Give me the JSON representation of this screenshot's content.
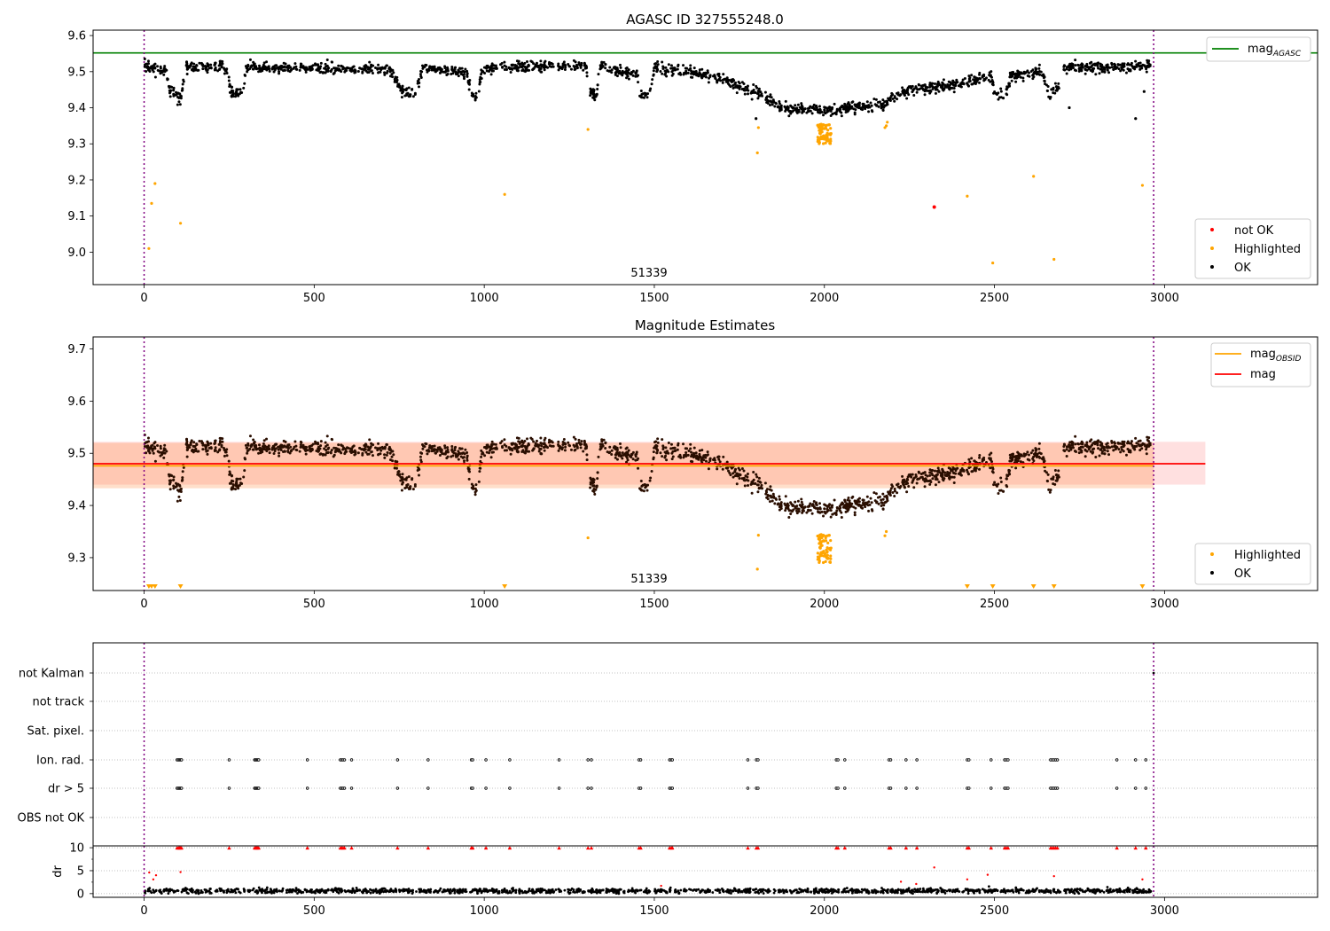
{
  "chart_data": [
    {
      "type": "scatter",
      "title": "AGASC ID 327555248.0",
      "xlim": [
        -150,
        3450
      ],
      "ylim": [
        8.91,
        9.615
      ],
      "x_ticks": [
        0,
        500,
        1000,
        1500,
        2000,
        2500,
        3000
      ],
      "y_ticks": [
        9.0,
        9.1,
        9.2,
        9.3,
        9.4,
        9.5,
        9.6
      ],
      "annotation": "51339",
      "vlines": [
        0,
        2968
      ],
      "hline": {
        "name": "mag",
        "name_sub": "AGASC",
        "value": 9.552,
        "color": "#008000",
        "x_range": [
          -150,
          3450
        ]
      },
      "legend_top": [
        {
          "label": "mag",
          "sub": "AGASC",
          "color": "#008000"
        }
      ],
      "legend_bottom": [
        {
          "label": "not OK",
          "color": "#ff0000"
        },
        {
          "label": "Highlighted",
          "color": "#ffa500"
        },
        {
          "label": "OK",
          "color": "#000000"
        }
      ],
      "trend": [
        [
          0,
          9.515
        ],
        [
          40,
          9.51
        ],
        [
          65,
          9.5
        ],
        [
          75,
          9.45
        ],
        [
          110,
          9.425
        ],
        [
          120,
          9.515
        ],
        [
          200,
          9.51
        ],
        [
          225,
          9.52
        ],
        [
          245,
          9.5
        ],
        [
          255,
          9.44
        ],
        [
          290,
          9.44
        ],
        [
          300,
          9.51
        ],
        [
          500,
          9.51
        ],
        [
          720,
          9.505
        ],
        [
          760,
          9.445
        ],
        [
          800,
          9.44
        ],
        [
          820,
          9.51
        ],
        [
          900,
          9.5
        ],
        [
          950,
          9.495
        ],
        [
          965,
          9.425
        ],
        [
          980,
          9.43
        ],
        [
          995,
          9.51
        ],
        [
          1300,
          9.515
        ],
        [
          1310,
          9.445
        ],
        [
          1330,
          9.435
        ],
        [
          1340,
          9.515
        ],
        [
          1450,
          9.49
        ],
        [
          1460,
          9.435
        ],
        [
          1490,
          9.45
        ],
        [
          1500,
          9.51
        ],
        [
          1600,
          9.5
        ],
        [
          1700,
          9.48
        ],
        [
          1800,
          9.44
        ],
        [
          1880,
          9.4
        ],
        [
          1990,
          9.395
        ],
        [
          2010,
          9.39
        ],
        [
          2100,
          9.405
        ],
        [
          2180,
          9.41
        ],
        [
          2220,
          9.44
        ],
        [
          2300,
          9.455
        ],
        [
          2400,
          9.465
        ],
        [
          2490,
          9.49
        ],
        [
          2500,
          9.435
        ],
        [
          2530,
          9.43
        ],
        [
          2550,
          9.49
        ],
        [
          2640,
          9.5
        ],
        [
          2660,
          9.44
        ],
        [
          2690,
          9.455
        ],
        [
          2700,
          9.51
        ],
        [
          2960,
          9.515
        ]
      ],
      "series": [
        {
          "name": "Highlighted",
          "color": "#ffa500",
          "points": [
            [
              14,
              9.01
            ],
            [
              22,
              9.135
            ],
            [
              32,
              9.19
            ],
            [
              107,
              9.08
            ],
            [
              1060,
              9.16
            ],
            [
              1305,
              9.34
            ],
            [
              1803,
              9.275
            ],
            [
              1806,
              9.345
            ],
            [
              2420,
              9.155
            ],
            [
              2495,
              8.97
            ],
            [
              2615,
              9.21
            ],
            [
              2675,
              8.98
            ],
            [
              2935,
              9.185
            ],
            [
              2178,
              9.345
            ],
            [
              2182,
              9.35
            ],
            [
              2185,
              9.36
            ]
          ]
        },
        {
          "name": "not OK",
          "color": "#ff0000",
          "points": [
            [
              2323,
              9.125
            ]
          ]
        },
        {
          "name": "OK",
          "color": "#000000",
          "points": [
            [
              2915,
              9.37
            ],
            [
              2940,
              9.445
            ],
            [
              2720,
              9.4
            ],
            [
              1799,
              9.37
            ]
          ]
        }
      ],
      "highlighted_cluster": {
        "x_range": [
          1980,
          2020
        ],
        "y_range": [
          9.3,
          9.355
        ],
        "color": "#ffa500"
      }
    },
    {
      "type": "scatter",
      "title": "Magnitude Estimates",
      "xlim": [
        -150,
        3450
      ],
      "ylim": [
        9.237,
        9.723
      ],
      "x_ticks": [
        0,
        500,
        1000,
        1500,
        2000,
        2500,
        3000
      ],
      "y_ticks": [
        9.3,
        9.4,
        9.5,
        9.6,
        9.7
      ],
      "annotation": "51339",
      "vlines": [
        0,
        2968
      ],
      "lines": [
        {
          "name": "mag",
          "name_sub": "OBSID",
          "value": 9.476,
          "color": "#ffa500",
          "x_range": [
            -150,
            2968
          ]
        },
        {
          "name": "mag",
          "value": 9.48,
          "color": "#ff0000",
          "x_range": [
            -150,
            3120
          ]
        }
      ],
      "bands": [
        {
          "y": [
            9.44,
            9.522
          ],
          "x_range": [
            -150,
            3120
          ],
          "color": "#ff0000",
          "opacity": 0.12
        },
        {
          "y": [
            9.433,
            9.52
          ],
          "x_range": [
            -150,
            2968
          ],
          "color": "#ff7f2a",
          "opacity": 0.25
        }
      ],
      "legend_top": [
        {
          "label": "mag",
          "sub": "OBSID",
          "color": "#ffa500"
        },
        {
          "label": "mag",
          "sub": "",
          "color": "#ff0000"
        }
      ],
      "legend_bottom": [
        {
          "label": "Highlighted",
          "color": "#ffa500"
        },
        {
          "label": "OK",
          "color": "#000000"
        }
      ],
      "lower_limit_markers": [
        14,
        22,
        32,
        107,
        1060,
        2420,
        2495,
        2615,
        2675,
        2935
      ],
      "series": [
        {
          "name": "Highlighted",
          "color": "#ffa500",
          "points": [
            [
              1305,
              9.338
            ],
            [
              1803,
              9.278
            ],
            [
              1806,
              9.343
            ],
            [
              2178,
              9.342
            ],
            [
              2182,
              9.35
            ]
          ]
        }
      ]
    },
    {
      "type": "scatter",
      "xlim": [
        -150,
        3450
      ],
      "x_ticks": [
        0,
        500,
        1000,
        1500,
        2000,
        2500,
        3000
      ],
      "flag_rows": [
        "not Kalman",
        "not track",
        "Sat. pixel.",
        "Ion. rad.",
        "dr > 5",
        "OBS not OK"
      ],
      "flag_x": [
        97,
        101,
        104,
        107,
        110,
        250,
        325,
        328,
        331,
        334,
        337,
        480,
        577,
        581,
        585,
        589,
        610,
        745,
        835,
        962,
        966,
        1005,
        1075,
        1220,
        1305,
        1315,
        1455,
        1460,
        1545,
        1550,
        1553,
        1775,
        1800,
        1805,
        2035,
        2040,
        2060,
        2190,
        2195,
        2240,
        2272,
        2420,
        2425,
        2490,
        2530,
        2535,
        2540,
        2665,
        2670,
        2675,
        2680,
        2685,
        2860,
        2915,
        2945
      ],
      "dr": {
        "ylabel": "dr",
        "ylim": [
          -0.8,
          10.4
        ],
        "y_ticks": [
          0,
          5,
          10
        ],
        "threshold": 10,
        "outliers": [
          [
            15,
            4.6
          ],
          [
            27,
            3.1
          ],
          [
            35,
            4.0
          ],
          [
            107,
            4.7
          ],
          [
            1520,
            1.7
          ],
          [
            2225,
            2.6
          ],
          [
            2270,
            2.1
          ],
          [
            2323,
            5.7
          ],
          [
            2420,
            3.1
          ],
          [
            2480,
            4.1
          ],
          [
            2675,
            3.8
          ],
          [
            2935,
            3.1
          ]
        ]
      }
    }
  ]
}
